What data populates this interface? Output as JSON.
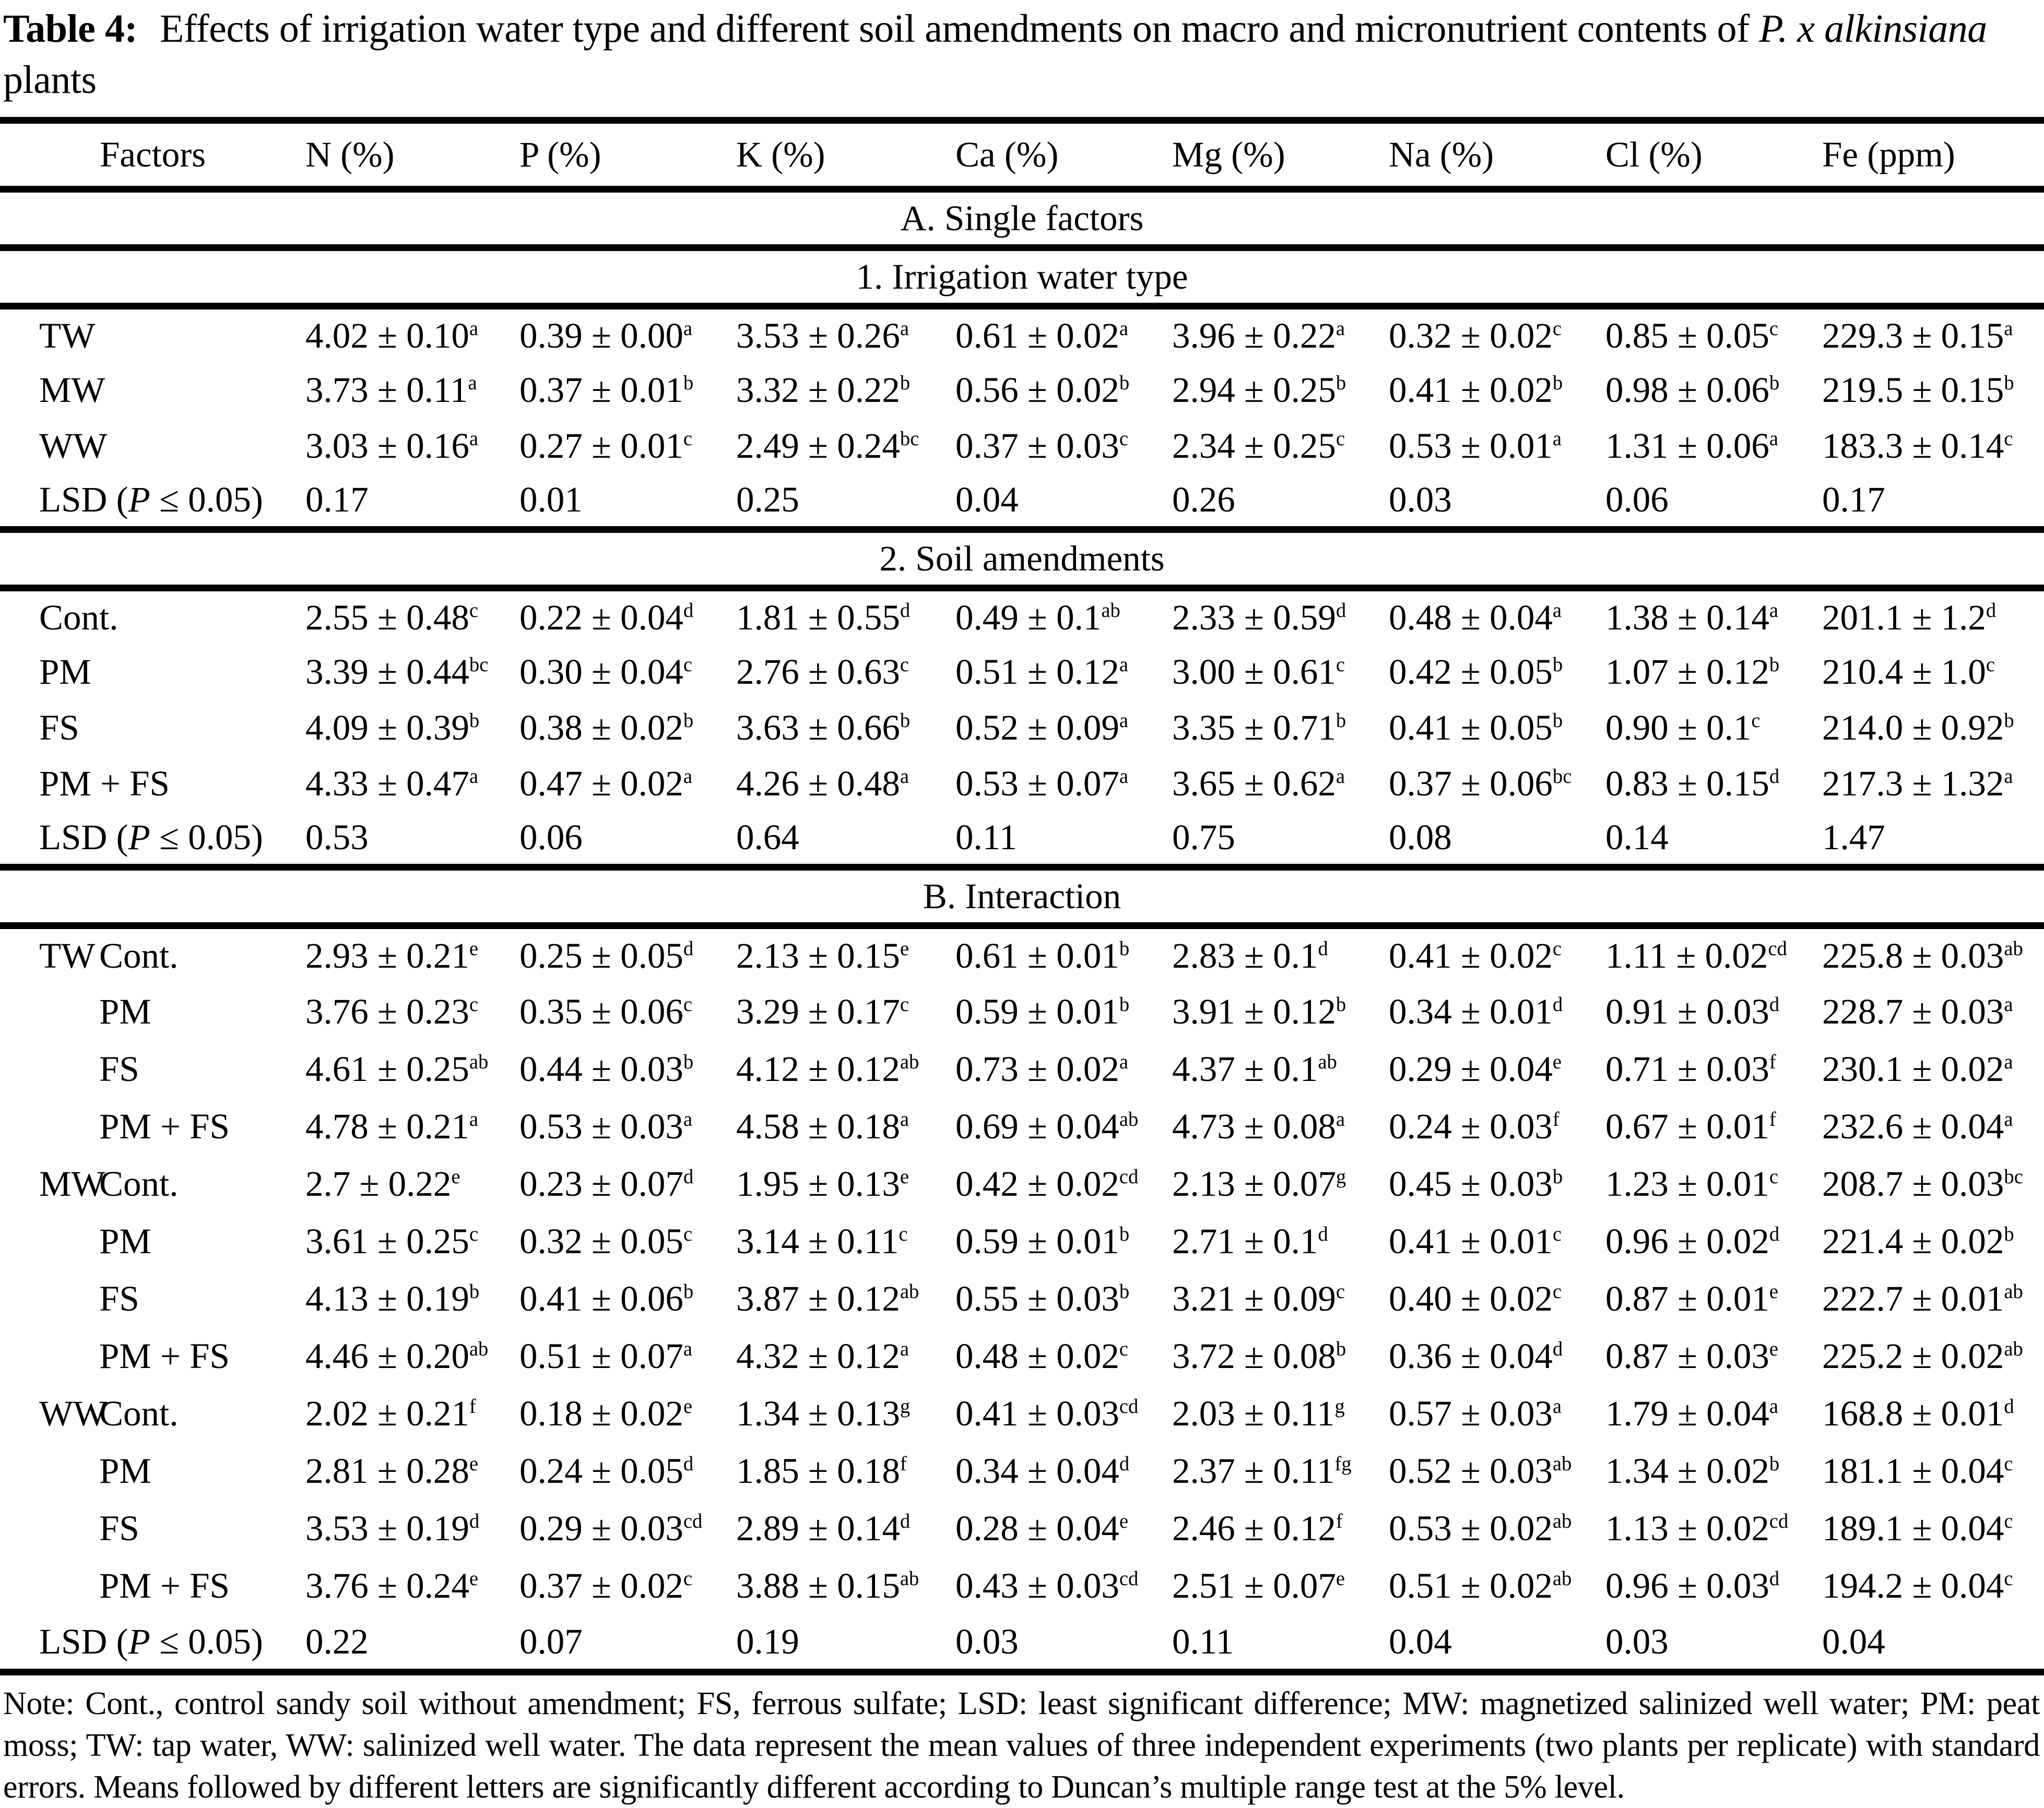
{
  "title": {
    "segments": [
      {
        "text": "Table 4:",
        "bold": true
      },
      {
        "text": " Effects of irrigation water type and different soil amendments on macro and micronutrient contents of "
      },
      {
        "text": "P. x alkinsiana",
        "italic": true
      },
      {
        "text": " plants"
      }
    ]
  },
  "table": {
    "factors_header": "Factors",
    "columns": [
      "N (%)",
      "P (%)",
      "K (%)",
      "Ca (%)",
      "Mg (%)",
      "Na (%)",
      "Cl (%)",
      "Fe (ppm)"
    ],
    "lsd_label": {
      "pre": "LSD (",
      "italic": "P",
      "post": " ≤ 0.05)"
    },
    "rows": [
      {
        "kind": "section",
        "label": "A. Single factors"
      },
      {
        "kind": "section",
        "label": "1. Irrigation water type"
      },
      {
        "kind": "data",
        "f1": "TW",
        "f2": "",
        "cells": [
          [
            "4.02 ± 0.10",
            "a"
          ],
          [
            "0.39 ± 0.00",
            "a"
          ],
          [
            "3.53 ± 0.26",
            "a"
          ],
          [
            "0.61 ± 0.02",
            "a"
          ],
          [
            "3.96 ± 0.22",
            "a"
          ],
          [
            "0.32 ± 0.02",
            "c"
          ],
          [
            "0.85 ± 0.05",
            "c"
          ],
          [
            "229.3 ± 0.15",
            "a"
          ]
        ]
      },
      {
        "kind": "data",
        "f1": "MW",
        "f2": "",
        "cells": [
          [
            "3.73 ± 0.11",
            "a"
          ],
          [
            "0.37 ± 0.01",
            "b"
          ],
          [
            "3.32 ± 0.22",
            "b"
          ],
          [
            "0.56 ± 0.02",
            "b"
          ],
          [
            "2.94 ± 0.25",
            "b"
          ],
          [
            "0.41 ± 0.02",
            "b"
          ],
          [
            "0.98 ± 0.06",
            "b"
          ],
          [
            "219.5 ± 0.15",
            "b"
          ]
        ]
      },
      {
        "kind": "data",
        "f1": "WW",
        "f2": "",
        "cells": [
          [
            "3.03 ± 0.16",
            "a"
          ],
          [
            "0.27 ± 0.01",
            "c"
          ],
          [
            "2.49 ± 0.24",
            "bc"
          ],
          [
            "0.37 ± 0.03",
            "c"
          ],
          [
            "2.34 ± 0.25",
            "c"
          ],
          [
            "0.53 ± 0.01",
            "a"
          ],
          [
            "1.31 ± 0.06",
            "a"
          ],
          [
            "183.3 ± 0.14",
            "c"
          ]
        ]
      },
      {
        "kind": "lsd",
        "cells": [
          "0.17",
          "0.01",
          "0.25",
          "0.04",
          "0.26",
          "0.03",
          "0.06",
          "0.17"
        ]
      },
      {
        "kind": "section",
        "label": "2. Soil amendments"
      },
      {
        "kind": "data",
        "f1": "Cont.",
        "f2": "",
        "cells": [
          [
            "2.55 ± 0.48",
            "c"
          ],
          [
            "0.22 ± 0.04",
            "d"
          ],
          [
            "1.81 ± 0.55",
            "d"
          ],
          [
            "0.49 ± 0.1",
            "ab"
          ],
          [
            "2.33 ± 0.59",
            "d"
          ],
          [
            "0.48 ± 0.04",
            "a"
          ],
          [
            "1.38 ± 0.14",
            "a"
          ],
          [
            "201.1 ± 1.2",
            "d"
          ]
        ]
      },
      {
        "kind": "data",
        "f1": "PM",
        "f2": "",
        "cells": [
          [
            "3.39 ± 0.44",
            "bc"
          ],
          [
            "0.30 ± 0.04",
            "c"
          ],
          [
            "2.76 ± 0.63",
            "c"
          ],
          [
            "0.51 ± 0.12",
            "a"
          ],
          [
            "3.00 ± 0.61",
            "c"
          ],
          [
            "0.42 ± 0.05",
            "b"
          ],
          [
            "1.07 ± 0.12",
            "b"
          ],
          [
            "210.4 ± 1.0",
            "c"
          ]
        ]
      },
      {
        "kind": "data",
        "f1": "FS",
        "f2": "",
        "cells": [
          [
            "4.09 ± 0.39",
            "b"
          ],
          [
            "0.38 ± 0.02",
            "b"
          ],
          [
            "3.63 ± 0.66",
            "b"
          ],
          [
            "0.52 ± 0.09",
            "a"
          ],
          [
            "3.35 ± 0.71",
            "b"
          ],
          [
            "0.41 ± 0.05",
            "b"
          ],
          [
            "0.90 ± 0.1",
            "c"
          ],
          [
            "214.0 ± 0.92",
            "b"
          ]
        ]
      },
      {
        "kind": "data",
        "f1": "PM + FS",
        "f2": "",
        "cells": [
          [
            "4.33 ± 0.47",
            "a"
          ],
          [
            "0.47 ± 0.02",
            "a"
          ],
          [
            "4.26 ± 0.48",
            "a"
          ],
          [
            "0.53 ± 0.07",
            "a"
          ],
          [
            "3.65 ± 0.62",
            "a"
          ],
          [
            "0.37 ± 0.06",
            "bc"
          ],
          [
            "0.83 ± 0.15",
            "d"
          ],
          [
            "217.3 ± 1.32",
            "a"
          ]
        ]
      },
      {
        "kind": "lsd",
        "cells": [
          "0.53",
          "0.06",
          "0.64",
          "0.11",
          "0.75",
          "0.08",
          "0.14",
          "1.47"
        ]
      },
      {
        "kind": "section",
        "label": "B. Interaction"
      },
      {
        "kind": "data",
        "f1": "TW",
        "f2": "Cont.",
        "cells": [
          [
            "2.93 ± 0.21",
            "e"
          ],
          [
            "0.25 ± 0.05",
            "d"
          ],
          [
            "2.13 ± 0.15",
            "e"
          ],
          [
            "0.61 ± 0.01",
            "b"
          ],
          [
            "2.83 ± 0.1",
            "d"
          ],
          [
            "0.41 ± 0.02",
            "c"
          ],
          [
            "1.11 ± 0.02",
            "cd"
          ],
          [
            "225.8 ± 0.03",
            "ab"
          ]
        ]
      },
      {
        "kind": "data",
        "f1": "",
        "f2": "PM",
        "cells": [
          [
            "3.76 ± 0.23",
            "c"
          ],
          [
            "0.35 ± 0.06",
            "c"
          ],
          [
            "3.29 ± 0.17",
            "c"
          ],
          [
            "0.59 ± 0.01",
            "b"
          ],
          [
            "3.91 ± 0.12",
            "b"
          ],
          [
            "0.34 ± 0.01",
            "d"
          ],
          [
            "0.91 ± 0.03",
            "d"
          ],
          [
            "228.7 ± 0.03",
            "a"
          ]
        ]
      },
      {
        "kind": "data",
        "f1": "",
        "f2": "FS",
        "cells": [
          [
            "4.61 ± 0.25",
            "ab"
          ],
          [
            "0.44 ± 0.03",
            "b"
          ],
          [
            "4.12 ± 0.12",
            "ab"
          ],
          [
            "0.73 ± 0.02",
            "a"
          ],
          [
            "4.37 ± 0.1",
            "ab"
          ],
          [
            "0.29 ± 0.04",
            "e"
          ],
          [
            "0.71 ± 0.03",
            "f"
          ],
          [
            "230.1 ± 0.02",
            "a"
          ]
        ]
      },
      {
        "kind": "data",
        "f1": "",
        "f2": "PM + FS",
        "cells": [
          [
            "4.78 ± 0.21",
            "a"
          ],
          [
            "0.53 ± 0.03",
            "a"
          ],
          [
            "4.58 ± 0.18",
            "a"
          ],
          [
            "0.69 ± 0.04",
            "ab"
          ],
          [
            "4.73 ± 0.08",
            "a"
          ],
          [
            "0.24 ± 0.03",
            "f"
          ],
          [
            "0.67 ± 0.01",
            "f"
          ],
          [
            "232.6 ± 0.04",
            "a"
          ]
        ]
      },
      {
        "kind": "data",
        "f1": "MW",
        "f2": "Cont.",
        "cells": [
          [
            "2.7 ± 0.22",
            "e"
          ],
          [
            "0.23 ± 0.07",
            "d"
          ],
          [
            "1.95 ± 0.13",
            "e"
          ],
          [
            "0.42 ± 0.02",
            "cd"
          ],
          [
            "2.13 ± 0.07",
            "g"
          ],
          [
            "0.45 ± 0.03",
            "b"
          ],
          [
            "1.23 ± 0.01",
            "c"
          ],
          [
            "208.7 ± 0.03",
            "bc"
          ]
        ]
      },
      {
        "kind": "data",
        "f1": "",
        "f2": "PM",
        "cells": [
          [
            "3.61 ± 0.25",
            "c"
          ],
          [
            "0.32 ± 0.05",
            "c"
          ],
          [
            "3.14 ± 0.11",
            "c"
          ],
          [
            "0.59 ± 0.01",
            "b"
          ],
          [
            "2.71 ± 0.1",
            "d"
          ],
          [
            "0.41 ± 0.01",
            "c"
          ],
          [
            "0.96 ± 0.02",
            "d"
          ],
          [
            "221.4 ± 0.02",
            "b"
          ]
        ]
      },
      {
        "kind": "data",
        "f1": "",
        "f2": "FS",
        "cells": [
          [
            "4.13 ± 0.19",
            "b"
          ],
          [
            "0.41 ± 0.06",
            "b"
          ],
          [
            "3.87 ± 0.12",
            "ab"
          ],
          [
            "0.55 ± 0.03",
            "b"
          ],
          [
            "3.21 ± 0.09",
            "c"
          ],
          [
            "0.40 ± 0.02",
            "c"
          ],
          [
            "0.87 ± 0.01",
            "e"
          ],
          [
            "222.7 ± 0.01",
            "ab"
          ]
        ]
      },
      {
        "kind": "data",
        "f1": "",
        "f2": "PM + FS",
        "cells": [
          [
            "4.46 ± 0.20",
            "ab"
          ],
          [
            "0.51 ± 0.07",
            "a"
          ],
          [
            "4.32 ± 0.12",
            "a"
          ],
          [
            "0.48 ± 0.02",
            "c"
          ],
          [
            "3.72 ± 0.08",
            "b"
          ],
          [
            "0.36 ± 0.04",
            "d"
          ],
          [
            "0.87 ± 0.03",
            "e"
          ],
          [
            "225.2 ± 0.02",
            "ab"
          ]
        ]
      },
      {
        "kind": "data",
        "f1": "WW",
        "f2": "Cont.",
        "cells": [
          [
            "2.02 ± 0.21",
            "f"
          ],
          [
            "0.18 ± 0.02",
            "e"
          ],
          [
            "1.34 ± 0.13",
            "g"
          ],
          [
            "0.41 ± 0.03",
            "cd"
          ],
          [
            "2.03 ± 0.11",
            "g"
          ],
          [
            "0.57 ± 0.03",
            "a"
          ],
          [
            "1.79 ± 0.04",
            "a"
          ],
          [
            "168.8 ± 0.01",
            "d"
          ]
        ]
      },
      {
        "kind": "data",
        "f1": "",
        "f2": "PM",
        "cells": [
          [
            "2.81 ± 0.28",
            "e"
          ],
          [
            "0.24 ± 0.05",
            "d"
          ],
          [
            "1.85 ± 0.18",
            "f"
          ],
          [
            "0.34 ± 0.04",
            "d"
          ],
          [
            "2.37 ± 0.11",
            "fg"
          ],
          [
            "0.52 ± 0.03",
            "ab"
          ],
          [
            "1.34 ± 0.02",
            "b"
          ],
          [
            "181.1 ± 0.04",
            "c"
          ]
        ]
      },
      {
        "kind": "data",
        "f1": "",
        "f2": "FS",
        "cells": [
          [
            "3.53 ± 0.19",
            "d"
          ],
          [
            "0.29 ± 0.03",
            "cd"
          ],
          [
            "2.89 ± 0.14",
            "d"
          ],
          [
            "0.28 ± 0.04",
            "e"
          ],
          [
            "2.46 ± 0.12",
            "f"
          ],
          [
            "0.53 ± 0.02",
            "ab"
          ],
          [
            "1.13 ± 0.02",
            "cd"
          ],
          [
            "189.1 ± 0.04",
            "c"
          ]
        ]
      },
      {
        "kind": "data",
        "f1": "",
        "f2": "PM + FS",
        "cells": [
          [
            "3.76 ± 0.24",
            "e"
          ],
          [
            "0.37 ± 0.02",
            "c"
          ],
          [
            "3.88 ± 0.15",
            "ab"
          ],
          [
            "0.43 ± 0.03",
            "cd"
          ],
          [
            "2.51 ± 0.07",
            "e"
          ],
          [
            "0.51 ± 0.02",
            "ab"
          ],
          [
            "0.96 ± 0.03",
            "d"
          ],
          [
            "194.2 ± 0.04",
            "c"
          ]
        ]
      },
      {
        "kind": "lsd",
        "cells": [
          "0.22",
          "0.07",
          "0.19",
          "0.03",
          "0.11",
          "0.04",
          "0.03",
          "0.04"
        ]
      }
    ]
  },
  "note": "Note: Cont., control sandy soil without amendment; FS, ferrous sulfate; LSD: least significant difference; MW: magnetized salinized well water; PM: peat moss; TW: tap water, WW: salinized well water. The data represent the mean values of three independent experiments (two plants per replicate) with standard errors. Means followed by different letters are significantly different according to Duncan’s multiple range test at the 5% level."
}
